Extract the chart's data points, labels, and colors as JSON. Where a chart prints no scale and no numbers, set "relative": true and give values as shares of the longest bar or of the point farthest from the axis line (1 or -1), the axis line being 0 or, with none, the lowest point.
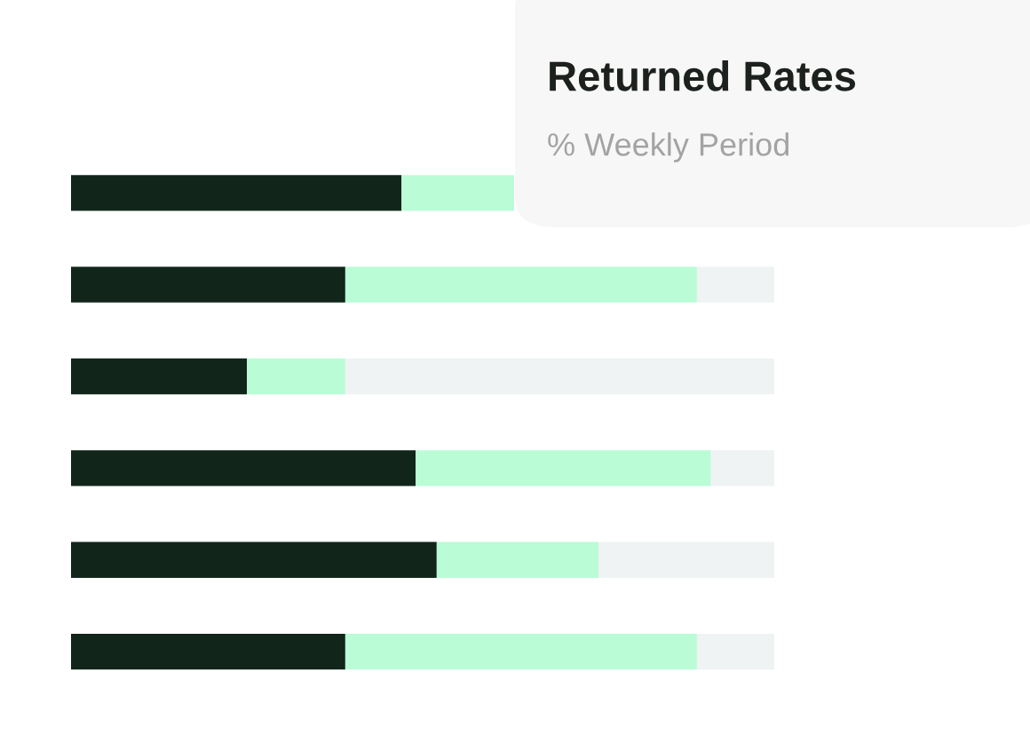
{
  "chart_data": {
    "type": "bar",
    "orientation": "horizontal",
    "stacked": true,
    "relative": true,
    "title": "Returned Rates",
    "subtitle": "% Weekly Period",
    "categories": [
      null,
      null,
      null,
      null,
      null,
      null
    ],
    "series": [
      {
        "color": "#12251b",
        "values": [
          0.47,
          0.39,
          0.25,
          0.49,
          0.52,
          0.39
        ]
      },
      {
        "color": "#b9fcd6",
        "values": [
          0.16,
          0.5,
          0.14,
          0.42,
          0.23,
          0.5
        ]
      },
      {
        "color": "#eff3f3",
        "values": [
          null,
          0.11,
          0.61,
          0.09,
          0.25,
          0.11
        ]
      }
    ],
    "grid": false,
    "legend": false
  }
}
